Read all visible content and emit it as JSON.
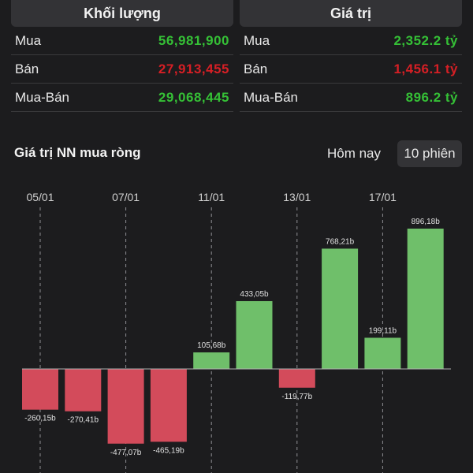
{
  "volume": {
    "title": "Khối lượng",
    "rows": [
      {
        "label": "Mua",
        "value": "56,981,900",
        "color": "#35c036"
      },
      {
        "label": "Bán",
        "value": "27,913,455",
        "color": "#d61f25"
      },
      {
        "label": "Mua-Bán",
        "value": "29,068,445",
        "color": "#35c036"
      }
    ]
  },
  "value_panel": {
    "title": "Giá trị",
    "rows": [
      {
        "label": "Mua",
        "value": "2,352.2 tỷ",
        "color": "#35c036"
      },
      {
        "label": "Bán",
        "value": "1,456.1 tỷ",
        "color": "#d61f25"
      },
      {
        "label": "Mua-Bán",
        "value": "896.2 tỷ",
        "color": "#35c036"
      }
    ]
  },
  "section": {
    "title": "Giá trị NN mua ròng",
    "tab_today": "Hôm nay",
    "tab_10": "10 phiên"
  },
  "colors": {
    "positive_bar": "#6fbf6a",
    "negative_bar": "#d34b5b",
    "positive_text": "#35c036",
    "negative_text": "#d61f25"
  },
  "chart_data": {
    "type": "bar",
    "x_tick_labels": [
      "05/01",
      "07/01",
      "11/01",
      "13/01",
      "17/01"
    ],
    "tick_positions": [
      0,
      2,
      4,
      6,
      8
    ],
    "values": [
      -260.15,
      -270.41,
      -477.07,
      -465.19,
      105.68,
      433.05,
      -119.77,
      768.21,
      199.11,
      896.18
    ],
    "labels": [
      "-260,15b",
      "-270,41b",
      "-477,07b",
      "-465,19b",
      "105,68b",
      "433,05b",
      "-119,77b",
      "768,21b",
      "199,11b",
      "896,18b"
    ]
  }
}
